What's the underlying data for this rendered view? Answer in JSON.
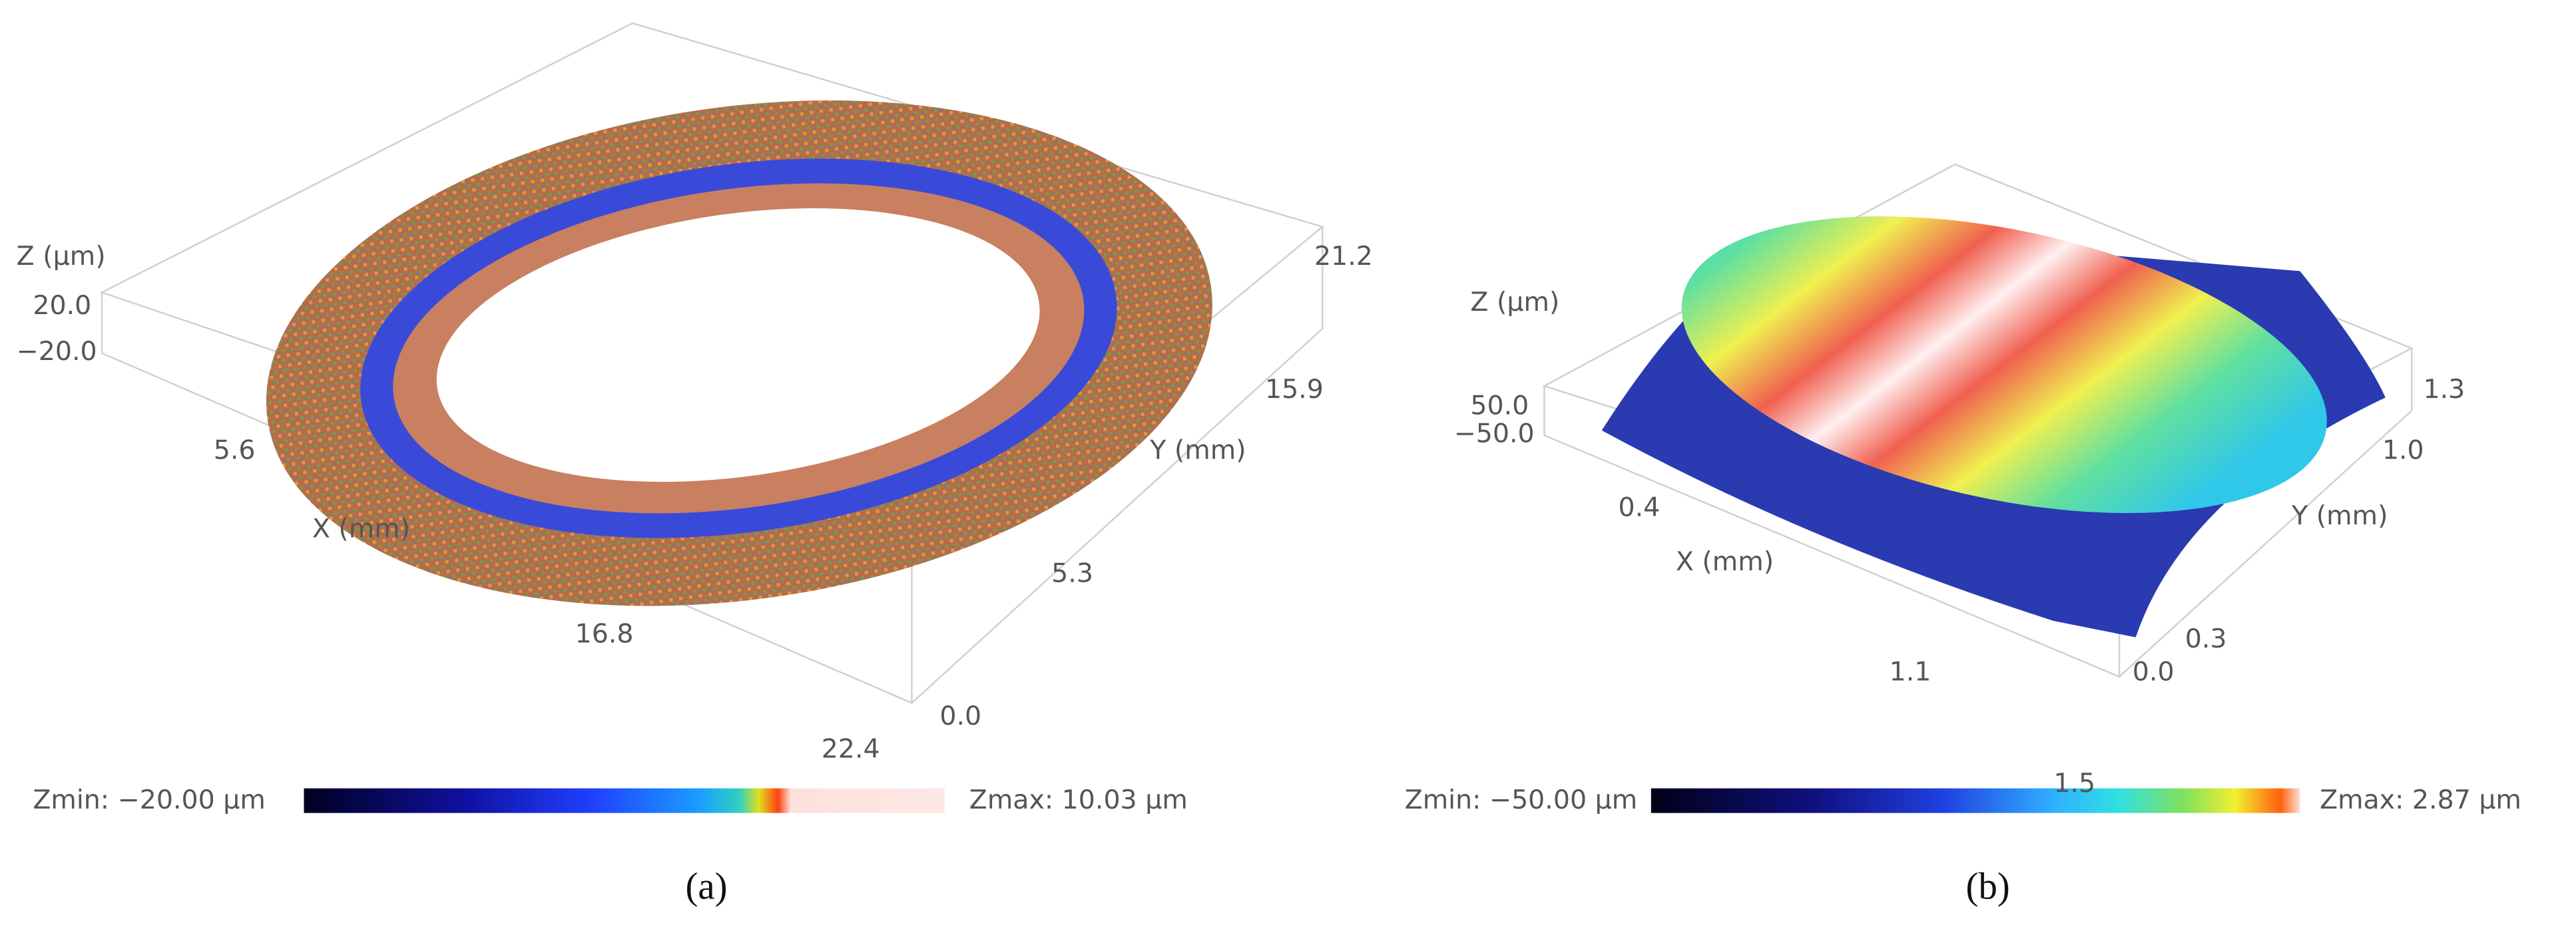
{
  "panels": [
    {
      "label": "(a)",
      "z_axis_label": "Z (µm)",
      "z_ticks": [
        "20.0",
        "−20.0"
      ],
      "x_axis_label": "X (mm)",
      "x_ticks": [
        "5.6",
        "16.8",
        "22.4"
      ],
      "y_axis_label": "Y (mm)",
      "y_ticks": [
        "21.2",
        "15.9",
        "5.3",
        "0.0"
      ],
      "zmin": "Zmin: −20.00 µm",
      "zmax": "Zmax: 10.03 µm"
    },
    {
      "label": "(b)",
      "z_axis_label": "Z (µm)",
      "z_ticks": [
        "50.0",
        "−50.0"
      ],
      "x_axis_label": "X (mm)",
      "x_ticks": [
        "0.4",
        "1.1",
        "1.5"
      ],
      "y_axis_label": "Y (mm)",
      "y_ticks": [
        "1.3",
        "1.0",
        "0.3",
        "0.0"
      ],
      "zmin": "Zmin: −50.00 µm",
      "zmax": "Zmax: 2.87 µm"
    }
  ]
}
